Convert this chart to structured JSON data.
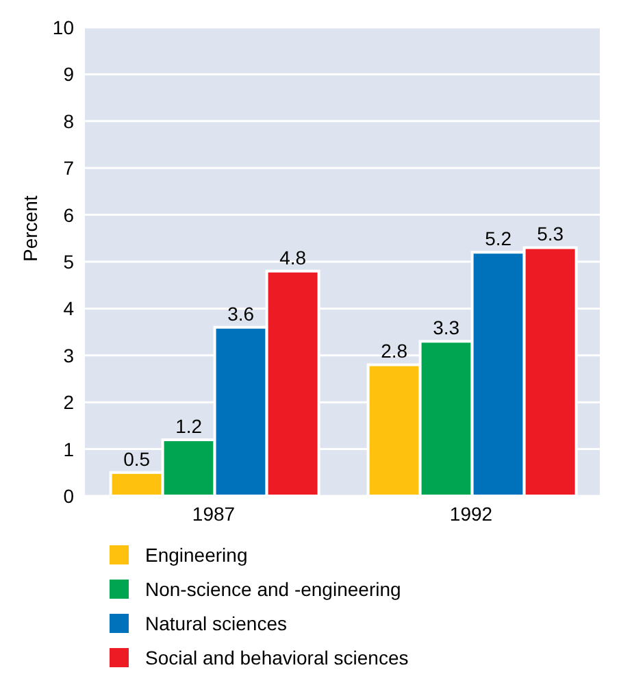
{
  "chart_data": {
    "type": "bar",
    "ylabel": "Percent",
    "categories": [
      "1987",
      "1992"
    ],
    "series": [
      {
        "name": "Engineering",
        "color": "#fec10e",
        "values": [
          0.5,
          2.8
        ]
      },
      {
        "name": "Non-science and -engineering",
        "color": "#00a551",
        "values": [
          1.2,
          3.3
        ]
      },
      {
        "name": "Natural sciences",
        "color": "#0072bc",
        "values": [
          3.6,
          5.2
        ]
      },
      {
        "name": "Social and behavioral sciences",
        "color": "#ed1c24",
        "values": [
          4.8,
          5.3
        ]
      }
    ],
    "ylim": [
      0,
      10
    ],
    "yticks": [
      0,
      1,
      2,
      3,
      4,
      5,
      6,
      7,
      8,
      9,
      10
    ],
    "grid": "y",
    "legend": "bottom",
    "data_labels": true
  }
}
